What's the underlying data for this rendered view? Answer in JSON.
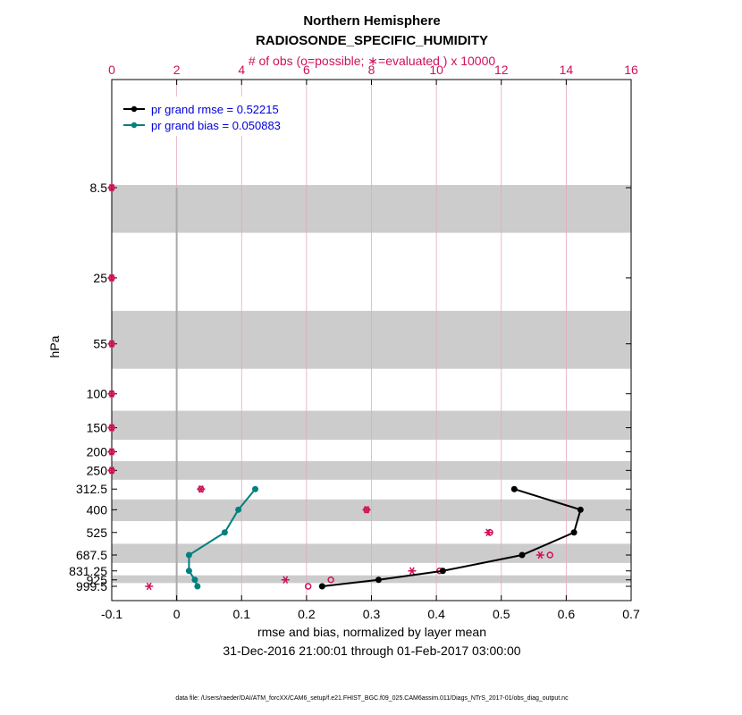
{
  "chart_data": {
    "type": "line",
    "title": "Northern Hemisphere",
    "subtitle": "RADIOSONDE_SPECIFIC_HUMIDITY",
    "top_axis_label": "# of obs (o=possible; ∗=evaluated ) x 10000",
    "top_xlim": [
      0,
      16
    ],
    "top_ticks": [
      "0",
      "2",
      "4",
      "6",
      "8",
      "10",
      "12",
      "14",
      "16"
    ],
    "xlabel": "rmse and bias, normalized by layer mean",
    "xlim": [
      -0.1,
      0.7
    ],
    "x_ticks": [
      "-0.1",
      "0",
      "0.1",
      "0.2",
      "0.3",
      "0.4",
      "0.5",
      "0.6",
      "0.7"
    ],
    "ylabel": "hPa",
    "levels": [
      8.5,
      25,
      55,
      100,
      150,
      200,
      250,
      312.5,
      400,
      525,
      687.5,
      831.25,
      925,
      999.5
    ],
    "level_labels": [
      "8.5",
      "25",
      "55",
      "100",
      "150",
      "200",
      "250",
      "312.5",
      "400",
      "525",
      "687.5",
      "831.25",
      "925",
      "999.5"
    ],
    "date_range": "31-Dec-2016 21:00:01 through 01-Feb-2017 03:00:00",
    "series": [
      {
        "name": "pr grand rmse = 0.52215",
        "color": "#000000",
        "levels": [
          312.5,
          400,
          525,
          687.5,
          831.25,
          925,
          999.5
        ],
        "values": [
          0.52,
          0.622,
          0.612,
          0.532,
          0.41,
          0.311,
          0.224
        ]
      },
      {
        "name": "pr grand bias = 0.050883",
        "color": "#008080",
        "levels": [
          312.5,
          400,
          525,
          687.5,
          831.25,
          925,
          999.5
        ],
        "values": [
          0.121,
          0.095,
          0.074,
          0.019,
          0.019,
          0.028,
          0.032
        ]
      }
    ],
    "obs_possible": {
      "symbol": "o",
      "color": "#d0105a",
      "levels": [
        8.5,
        25,
        55,
        100,
        150,
        200,
        250,
        312.5,
        400,
        525,
        687.5,
        831.25,
        925,
        999.5
      ],
      "values": [
        0,
        0,
        0,
        0,
        0,
        0,
        0,
        2.75,
        7.85,
        11.65,
        13.5,
        10.1,
        6.75,
        6.05
      ]
    },
    "obs_evaluated": {
      "symbol": "∗",
      "color": "#d0105a",
      "levels": [
        8.5,
        25,
        55,
        100,
        150,
        200,
        250,
        312.5,
        400,
        525,
        687.5,
        831.25,
        925,
        999.5
      ],
      "values": [
        0,
        0,
        0,
        0,
        0,
        0,
        0,
        2.75,
        7.85,
        11.6,
        13.2,
        9.25,
        5.35,
        1.15
      ]
    },
    "grid": true,
    "legend_location": "top-left"
  },
  "footer": "data file: /Users/raeder/DAI/ATM_forcXX/CAM6_setup/f.e21.FHIST_BGC.f09_025.CAM6assim.011/Diags_NTrS_2017-01/obs_diag_output.nc"
}
